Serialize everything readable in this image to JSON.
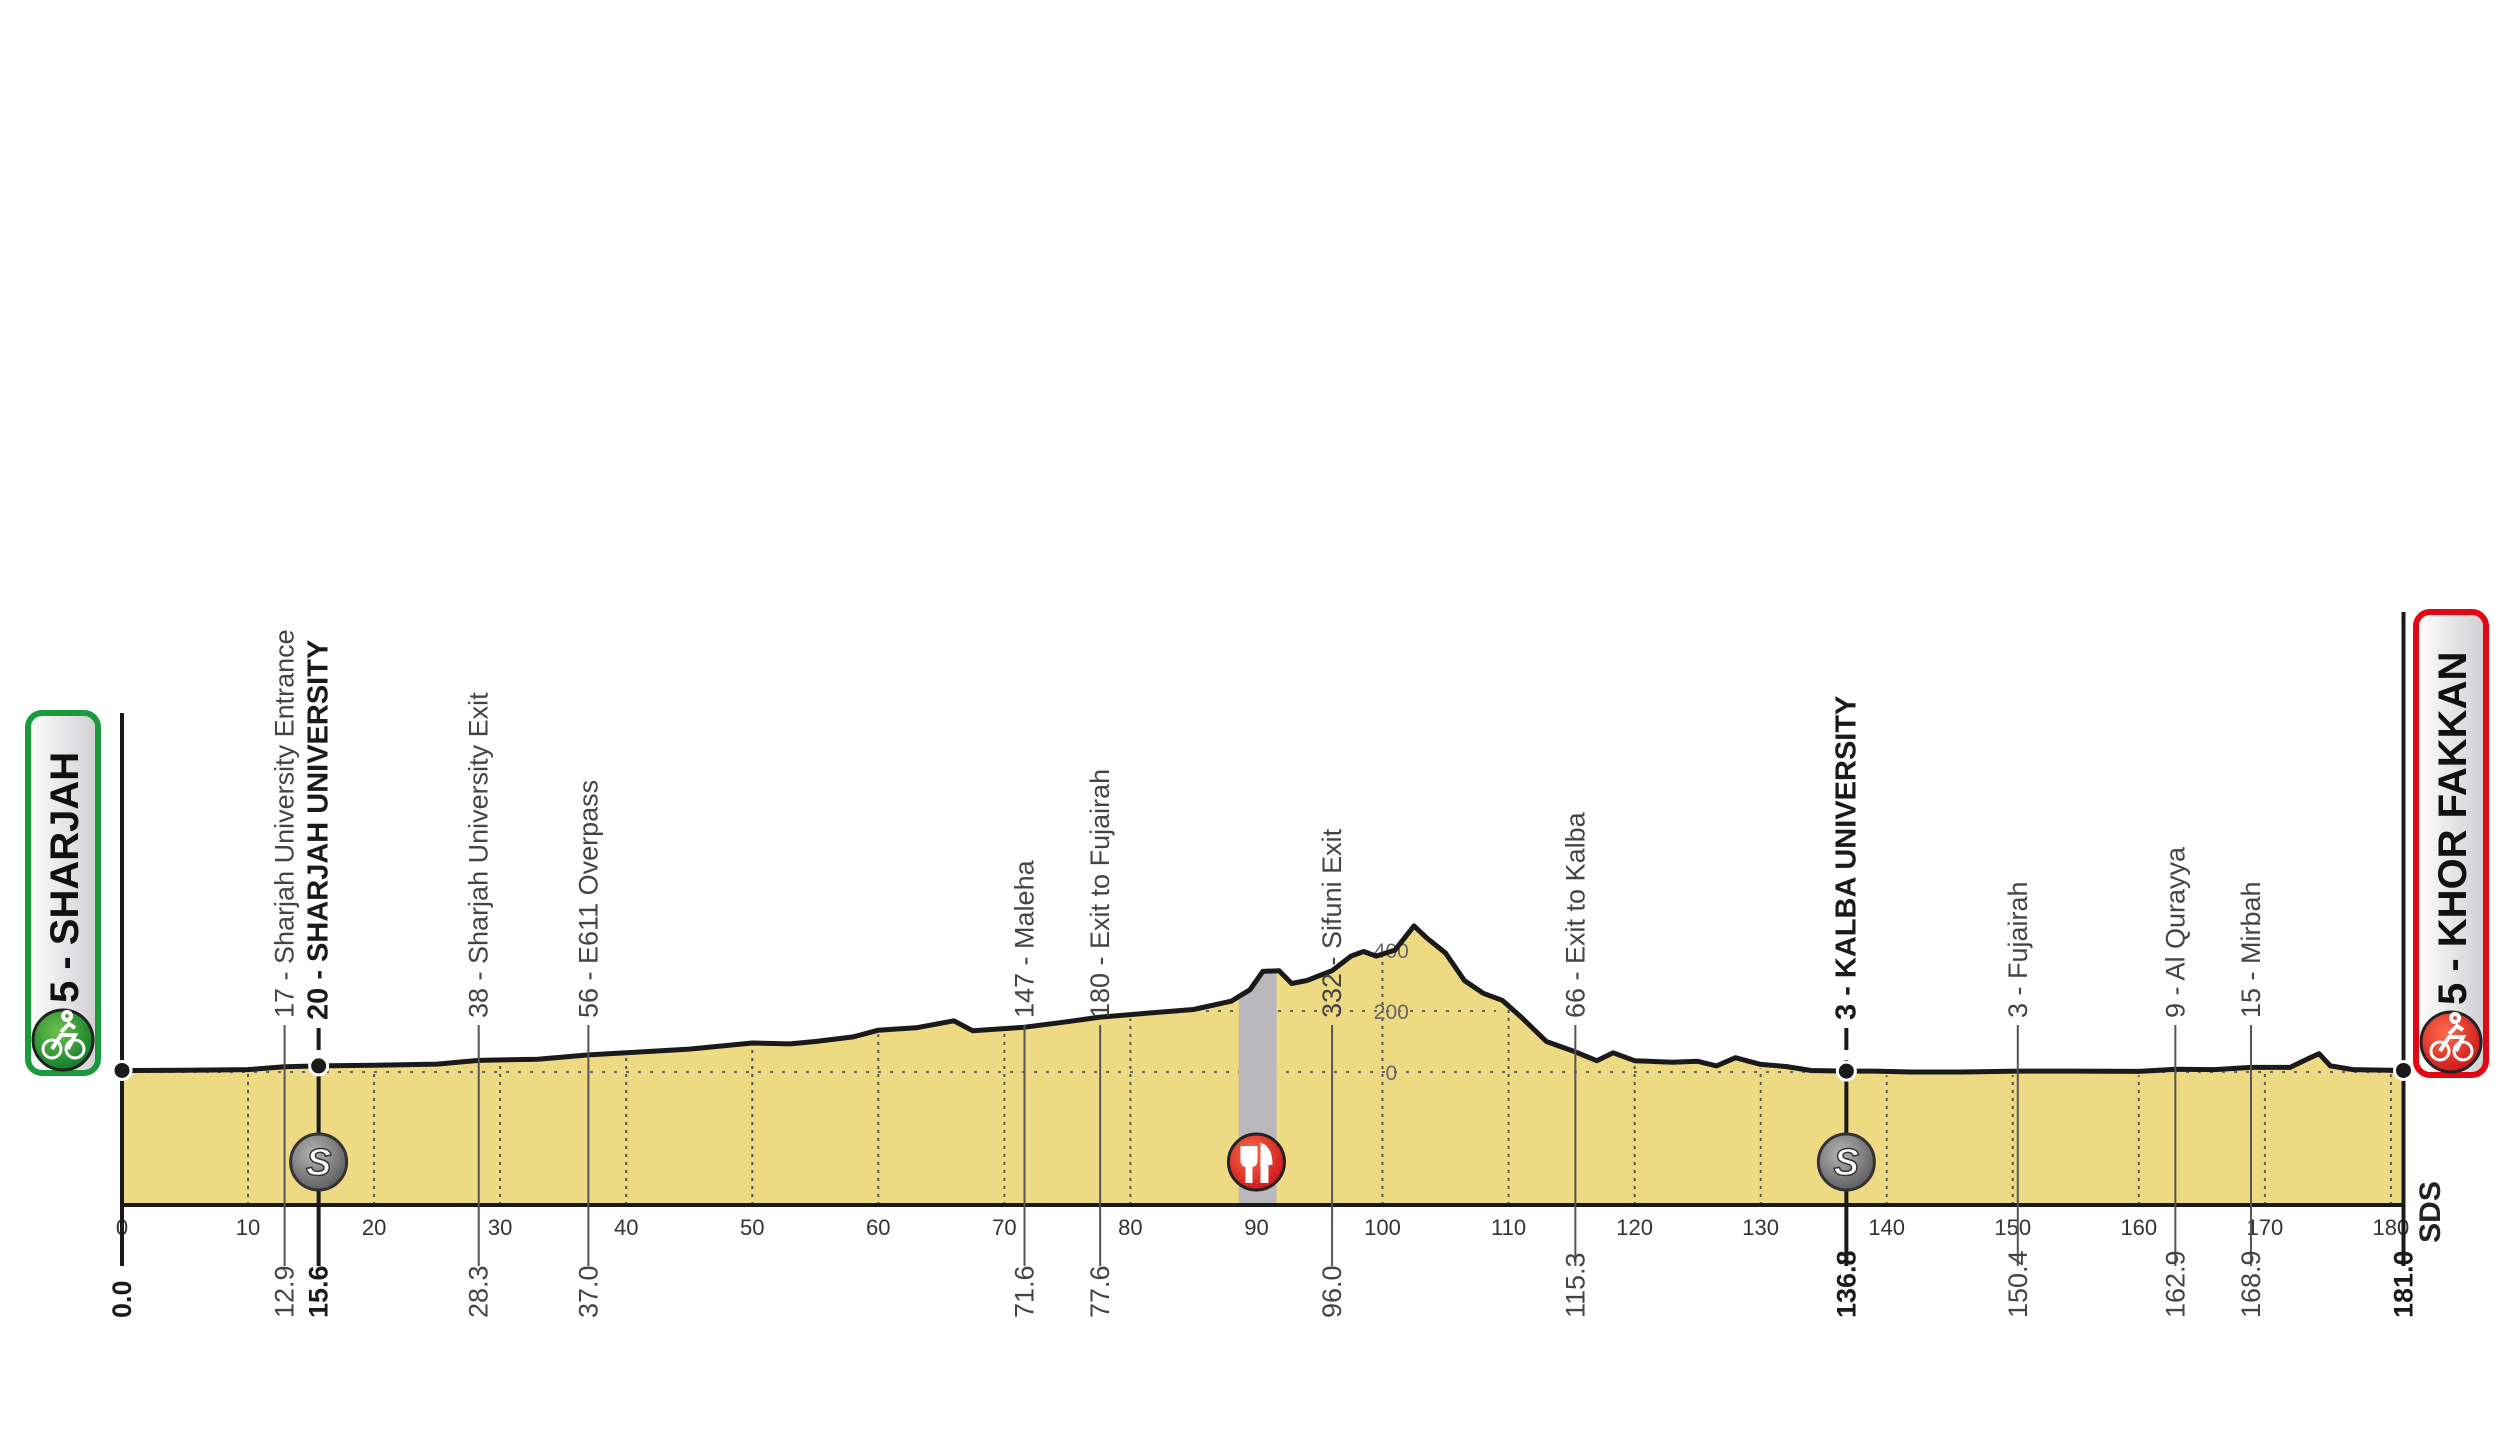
{
  "chart_data": {
    "type": "area",
    "xlabel": "",
    "ylabel": "",
    "xlim": [
      0,
      181
    ],
    "x_ticks": [
      0,
      10,
      20,
      30,
      40,
      50,
      60,
      70,
      80,
      90,
      100,
      110,
      120,
      130,
      140,
      150,
      160,
      170,
      180
    ],
    "elevation_ticks": [
      0,
      200,
      400
    ],
    "grid": "dotted",
    "colors": {
      "fill": "#efda84",
      "line": "#1a1a1a",
      "start": "#1a9a3a",
      "finish": "#e30613",
      "feed_zone": "#b9b9bd",
      "sprint": "#777777"
    },
    "profile": [
      [
        0,
        5
      ],
      [
        5,
        6
      ],
      [
        10,
        8
      ],
      [
        12.9,
        17
      ],
      [
        15.6,
        20
      ],
      [
        20,
        22
      ],
      [
        25,
        26
      ],
      [
        28.3,
        38
      ],
      [
        33,
        42
      ],
      [
        37,
        56
      ],
      [
        40,
        63
      ],
      [
        45,
        75
      ],
      [
        50,
        95
      ],
      [
        53,
        92
      ],
      [
        55,
        100
      ],
      [
        58,
        115
      ],
      [
        60,
        137
      ],
      [
        63,
        145
      ],
      [
        66,
        168
      ],
      [
        67.5,
        135
      ],
      [
        71.6,
        147
      ],
      [
        75,
        165
      ],
      [
        77.6,
        180
      ],
      [
        82,
        195
      ],
      [
        85,
        205
      ],
      [
        88,
        232
      ],
      [
        89.5,
        270
      ],
      [
        90.5,
        330
      ],
      [
        91.8,
        332
      ],
      [
        92.8,
        290
      ],
      [
        94,
        300
      ],
      [
        96,
        332
      ],
      [
        97.5,
        380
      ],
      [
        98.5,
        395
      ],
      [
        99.5,
        380
      ],
      [
        101,
        400
      ],
      [
        102.5,
        479
      ],
      [
        103.5,
        440
      ],
      [
        105,
        390
      ],
      [
        106.5,
        300
      ],
      [
        108,
        258
      ],
      [
        109.5,
        235
      ],
      [
        111,
        180
      ],
      [
        113,
        100
      ],
      [
        115.3,
        66
      ],
      [
        117,
        37
      ],
      [
        118.3,
        63
      ],
      [
        120,
        37
      ],
      [
        123,
        32
      ],
      [
        125,
        35
      ],
      [
        126.5,
        20
      ],
      [
        128,
        47
      ],
      [
        130,
        25
      ],
      [
        132,
        18
      ],
      [
        134,
        5
      ],
      [
        136.8,
        3
      ],
      [
        139,
        3
      ],
      [
        142,
        0
      ],
      [
        146,
        0
      ],
      [
        150.4,
        3
      ],
      [
        155,
        3
      ],
      [
        160,
        2
      ],
      [
        162.9,
        9
      ],
      [
        166,
        8
      ],
      [
        168.9,
        15
      ],
      [
        172,
        15
      ],
      [
        173.5,
        45
      ],
      [
        174.3,
        60
      ],
      [
        175.2,
        20
      ],
      [
        177,
        8
      ],
      [
        181,
        5
      ]
    ],
    "start": {
      "label": "5 - SHARJAH",
      "km": "0.0"
    },
    "finish": {
      "label": "5 - KHOR FAKKAN",
      "km": "181.0"
    },
    "waypoints": [
      {
        "km": 12.9,
        "km_label": "12.9",
        "label": "17 - Sharjah University Entrance",
        "major": false
      },
      {
        "km": 15.6,
        "km_label": "15.6",
        "label": "20 - SHARJAH UNIVERSITY",
        "major": true,
        "icon": "sprint"
      },
      {
        "km": 28.3,
        "km_label": "28.3",
        "label": "38 - Sharjah University Exit",
        "major": false
      },
      {
        "km": 37.0,
        "km_label": "37.0",
        "label": "56 - E611 Overpass",
        "major": false
      },
      {
        "km": 71.6,
        "km_label": "71.6",
        "label": "147 - Maleha",
        "major": false
      },
      {
        "km": 77.6,
        "km_label": "77.6",
        "label": "180 - Exit to Fujairah",
        "major": false
      },
      {
        "km": 96.0,
        "km_label": "96.0",
        "label": "332 - Sifuni Exit",
        "major": false
      },
      {
        "km": 115.3,
        "km_label": "115.3",
        "label": "66 - Exit to Kalba",
        "major": false
      },
      {
        "km": 136.8,
        "km_label": "136.8",
        "label": "3 - KALBA UNIVERSITY",
        "major": true,
        "icon": "sprint"
      },
      {
        "km": 150.4,
        "km_label": "150.4",
        "label": "3 - Fujairah",
        "major": false
      },
      {
        "km": 162.9,
        "km_label": "162.9",
        "label": "9 - Al Qurayya",
        "major": false
      },
      {
        "km": 168.9,
        "km_label": "168.9",
        "label": "15 - Mirbah",
        "major": false
      }
    ],
    "feed_zone": {
      "from": 88.6,
      "to": 91.6,
      "icon": "fork-knife"
    },
    "sprint_icon_letter": "S"
  },
  "logo": "SDS"
}
